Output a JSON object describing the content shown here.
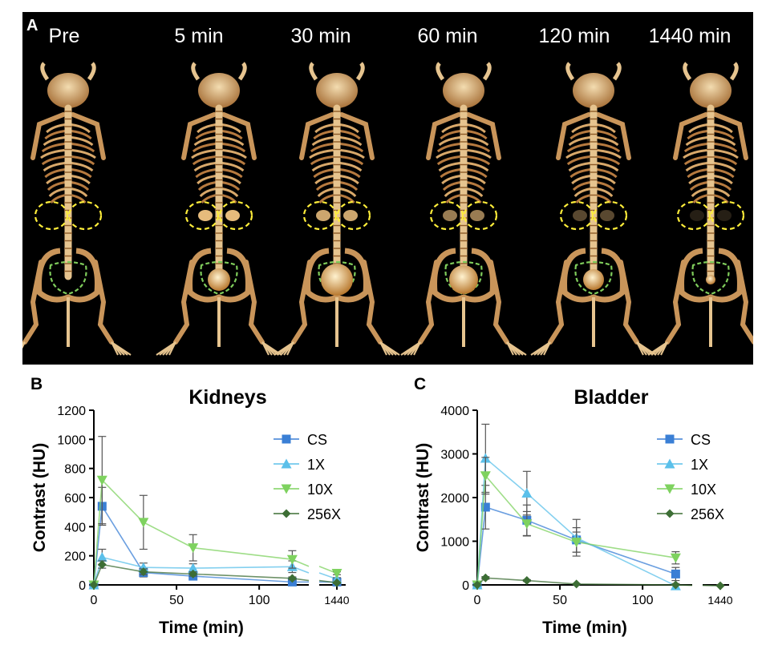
{
  "panel_a": {
    "letter": "A",
    "time_labels": [
      "Pre",
      "5 min",
      "30 min",
      "60 min",
      "120 min",
      "1440 min"
    ]
  },
  "chart_data": [
    {
      "panel_letter": "B",
      "type": "line",
      "title": "Kidneys",
      "xlabel": "Time (min)",
      "ylabel": "Contrast (HU)",
      "ylim": [
        0,
        1200
      ],
      "yticks": [
        0,
        200,
        400,
        600,
        800,
        1000,
        1200
      ],
      "xlim_main": [
        0,
        130
      ],
      "xticks_main": [
        0,
        50,
        100
      ],
      "xtick_break": 1440,
      "series": [
        {
          "name": "CS",
          "color": "#3a7fd5",
          "marker": "square",
          "x": [
            0,
            5,
            30,
            60,
            120,
            1440
          ],
          "y": [
            0,
            540,
            85,
            60,
            20,
            20
          ],
          "err": [
            0,
            130,
            30,
            25,
            10,
            10
          ]
        },
        {
          "name": "1X",
          "color": "#5bc0ea",
          "marker": "triangle-up",
          "x": [
            0,
            5,
            30,
            60,
            120,
            1440
          ],
          "y": [
            0,
            190,
            120,
            115,
            125,
            40
          ],
          "err": [
            0,
            55,
            30,
            30,
            40,
            10
          ]
        },
        {
          "name": "10X",
          "color": "#7ed25f",
          "marker": "triangle-down",
          "x": [
            0,
            5,
            30,
            60,
            120,
            1440
          ],
          "y": [
            0,
            720,
            430,
            255,
            175,
            80
          ],
          "err": [
            0,
            300,
            185,
            90,
            60,
            10
          ]
        },
        {
          "name": "256X",
          "color": "#3d6e35",
          "marker": "diamond",
          "x": [
            0,
            5,
            30,
            60,
            120,
            1440
          ],
          "y": [
            0,
            140,
            90,
            75,
            45,
            15
          ],
          "err": [
            0,
            25,
            20,
            15,
            10,
            5
          ]
        }
      ]
    },
    {
      "panel_letter": "C",
      "type": "line",
      "title": "Bladder",
      "xlabel": "Time (min)",
      "ylabel": "Contrast (HU)",
      "ylim": [
        0,
        4000
      ],
      "yticks": [
        0,
        1000,
        2000,
        3000,
        4000
      ],
      "xlim_main": [
        0,
        130
      ],
      "xticks_main": [
        0,
        50,
        100
      ],
      "xtick_break": 1440,
      "series": [
        {
          "name": "CS",
          "color": "#3a7fd5",
          "marker": "square",
          "x": [
            0,
            5,
            30,
            60,
            120
          ],
          "y": [
            0,
            1780,
            1480,
            1030,
            250
          ],
          "err": [
            0,
            500,
            350,
            280,
            150
          ]
        },
        {
          "name": "1X",
          "color": "#5bc0ea",
          "marker": "triangle-up",
          "x": [
            0,
            5,
            30,
            60,
            120
          ],
          "y": [
            0,
            2900,
            2100,
            1080,
            -20
          ],
          "err": [
            0,
            780,
            500,
            420,
            50
          ]
        },
        {
          "name": "10X",
          "color": "#7ed25f",
          "marker": "triangle-down",
          "x": [
            0,
            5,
            30,
            60,
            120
          ],
          "y": [
            0,
            2500,
            1400,
            980,
            620
          ],
          "err": [
            0,
            420,
            280,
            230,
            140
          ]
        },
        {
          "name": "256X",
          "color": "#3d6e35",
          "marker": "diamond",
          "x": [
            0,
            5,
            30,
            60,
            120,
            1440
          ],
          "y": [
            0,
            160,
            100,
            20,
            0,
            -20
          ],
          "err": [
            0,
            30,
            20,
            10,
            5,
            5
          ]
        }
      ]
    }
  ]
}
